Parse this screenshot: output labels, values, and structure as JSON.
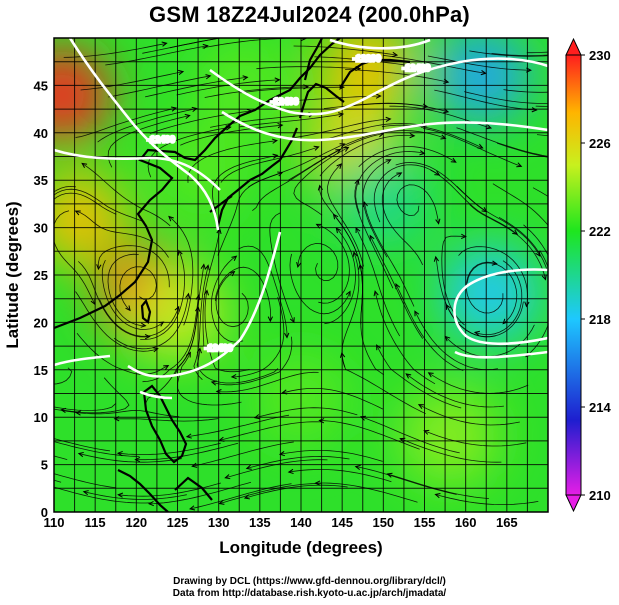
{
  "title": "GSM 18Z24Jul2024 (200.0hPa)",
  "x_axis": {
    "label": "Longitude (degrees)",
    "range": [
      110,
      170
    ],
    "ticks": [
      "110",
      "115",
      "120",
      "125",
      "130",
      "135",
      "140",
      "145",
      "150",
      "155",
      "160",
      "165"
    ]
  },
  "y_axis": {
    "label": "Latitude  (degrees)",
    "range": [
      0,
      50
    ],
    "ticks": [
      "0",
      "5",
      "10",
      "15",
      "20",
      "25",
      "30",
      "35",
      "40",
      "45"
    ]
  },
  "colorbar": {
    "ticks": [
      "210",
      "214",
      "218",
      "222",
      "226",
      "230"
    ],
    "range": [
      210,
      230
    ],
    "colors": [
      "#e61ee6",
      "#1e1ecf",
      "#1ec8ff",
      "#1ee61e",
      "#c8f01e",
      "#ffb400",
      "#ff1e1e"
    ]
  },
  "contour_labels": [
    {
      "text": "-12200",
      "lon": 148,
      "lat": 47.5
    },
    {
      "text": "-12400",
      "lon": 154,
      "lat": 46.5
    },
    {
      "text": "-12400",
      "lon": 123,
      "lat": 39
    },
    {
      "text": "-12400",
      "lon": 138,
      "lat": 43
    },
    {
      "text": "-12400",
      "lon": 130,
      "lat": 17
    }
  ],
  "fields": {
    "temperature_blobs": [
      {
        "lon": 111,
        "lat": 44,
        "value": 230
      },
      {
        "lon": 121,
        "lat": 23,
        "value": 229
      },
      {
        "lon": 113,
        "lat": 31,
        "value": 227
      },
      {
        "lon": 148,
        "lat": 47,
        "value": 227
      },
      {
        "lon": 146,
        "lat": 39,
        "value": 226
      },
      {
        "lon": 163,
        "lat": 23,
        "value": 218
      },
      {
        "lon": 162,
        "lat": 46,
        "value": 217
      },
      {
        "lon": 150,
        "lat": 33,
        "value": 220
      },
      {
        "lon": 133,
        "lat": 45,
        "value": 223
      },
      {
        "lon": 128,
        "lat": 36,
        "value": 223
      },
      {
        "lon": 125,
        "lat": 21,
        "value": 225
      },
      {
        "lon": 140,
        "lat": 12,
        "value": 223
      },
      {
        "lon": 158,
        "lat": 8,
        "value": 224
      }
    ]
  },
  "footer": {
    "line1": "Drawing by DCL (https://www.gfd-dennou.org/library/dcl/)",
    "line2": "Data from http://database.rish.kyoto-u.ac.jp/arch/jmadata/"
  }
}
